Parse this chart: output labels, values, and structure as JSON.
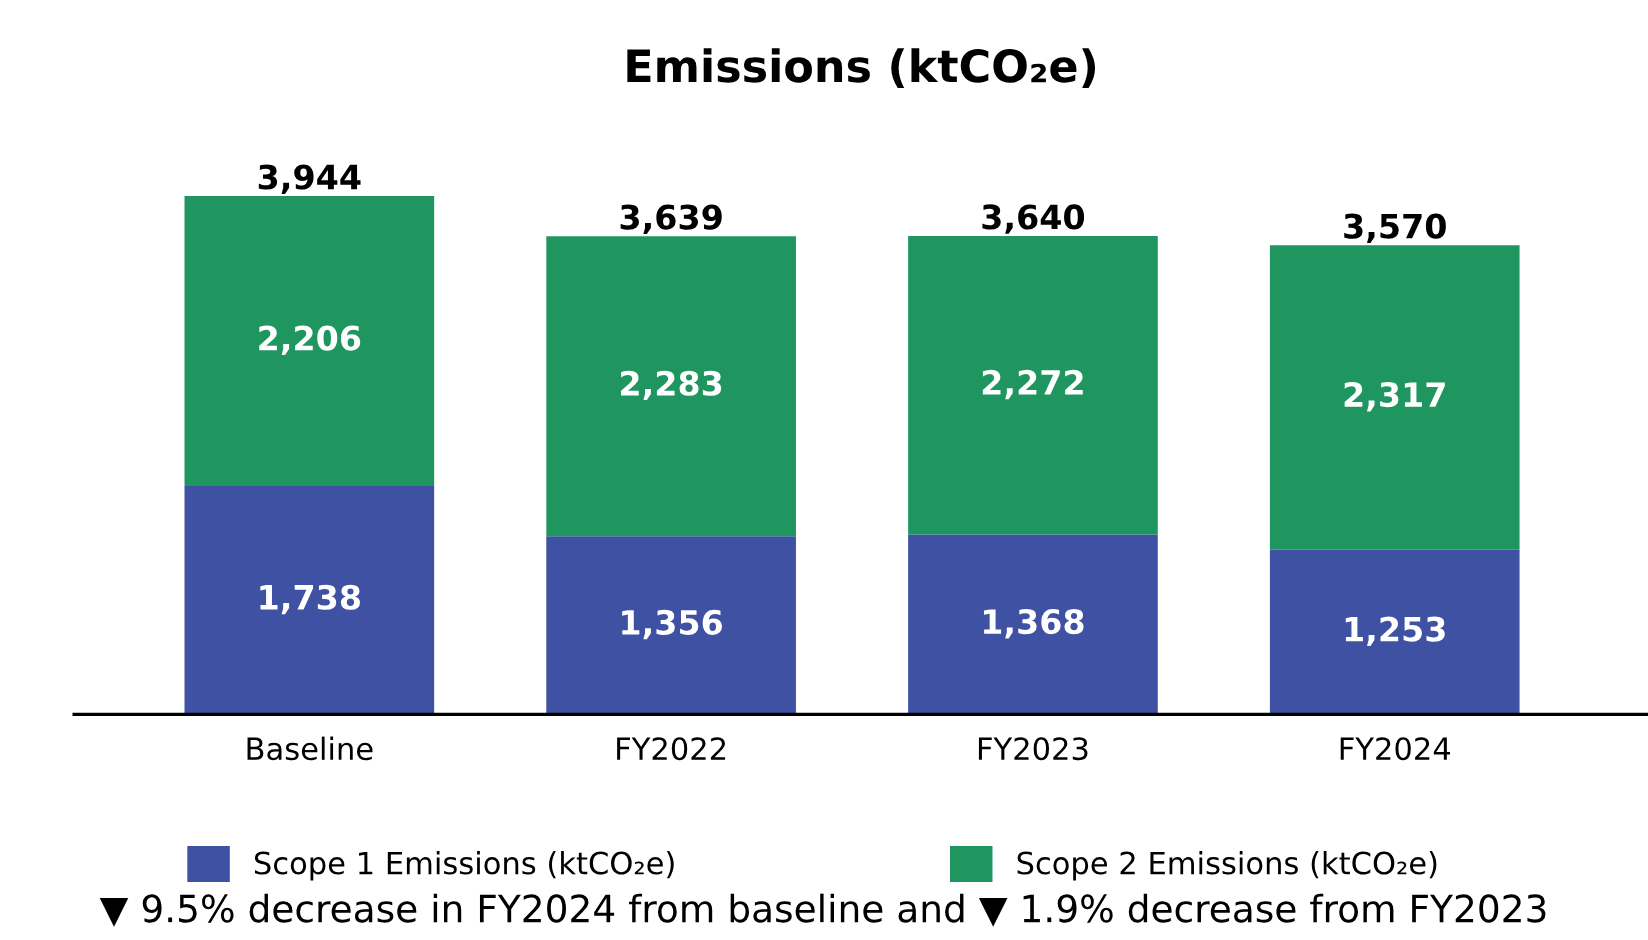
{
  "chart_data": {
    "type": "bar",
    "title": "Emissions (ktCO₂e)",
    "categories": [
      "Baseline",
      "FY2022",
      "FY2023",
      "FY2024"
    ],
    "stacked": true,
    "series": [
      {
        "name": "Scope 1 Emissions (ktCO₂e)",
        "color": "#3f51a3",
        "values": [
          1738,
          1356,
          1368,
          1253
        ],
        "value_labels": [
          "1,738",
          "1,356",
          "1,368",
          "1,253"
        ]
      },
      {
        "name": "Scope 2 Emissions (ktCO₂e)",
        "color": "#1f9660",
        "values": [
          2206,
          2283,
          2272,
          2317
        ],
        "value_labels": [
          "2,206",
          "2,283",
          "2,272",
          "2,317"
        ]
      }
    ],
    "totals": [
      "3,944",
      "3,639",
      "3,640",
      "3,570"
    ],
    "tick_labels": "x",
    "grid": false,
    "legend": "bottom",
    "annotations": [
      "▼ 9.5% decrease in FY2024 from baseline and ▼ 1.9% decrease from FY2023"
    ]
  }
}
